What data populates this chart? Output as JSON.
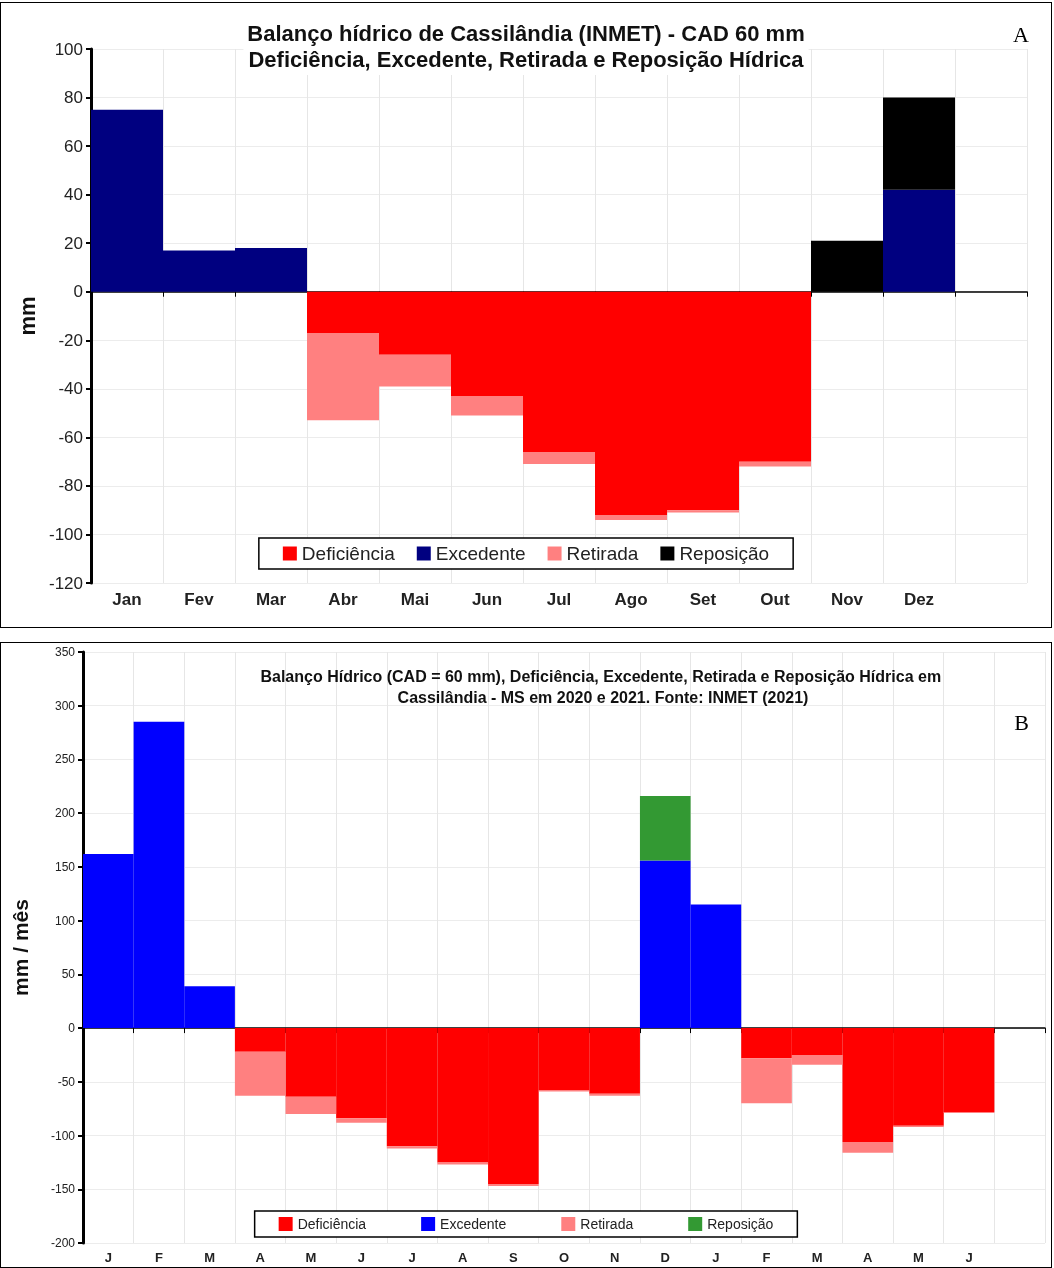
{
  "chart_data": [
    {
      "type": "bar",
      "title": "Balanço hídrico de Cassilândia (INMET) - CAD 60 mm",
      "subtitle": "Deficiência, Excedente, Retirada e Reposição Hídrica",
      "ylabel": "mm",
      "annotations": [
        "A"
      ],
      "stacked": true,
      "grid": true,
      "legend": "bottom",
      "ylim": [
        -120,
        100
      ],
      "yticks": [
        -120,
        -100,
        -80,
        -60,
        -40,
        -20,
        0,
        20,
        40,
        60,
        80,
        100
      ],
      "categories": [
        "Jan",
        "Fev",
        "Mar",
        "Abr",
        "Mai",
        "Jun",
        "Jul",
        "Ago",
        "Set",
        "Out",
        "Nov",
        "Dez",
        null
      ],
      "series": [
        {
          "name": "Deficiência",
          "color": "#ff0000",
          "values": [
            null,
            null,
            null,
            -17,
            -26,
            -43,
            -66,
            -92,
            -90,
            -70,
            null,
            null,
            null
          ]
        },
        {
          "name": "Excedente",
          "color": "#000080",
          "values": [
            75,
            17,
            18,
            null,
            null,
            null,
            null,
            null,
            null,
            null,
            null,
            42,
            null
          ]
        },
        {
          "name": "Retirada",
          "color": "#ff8080",
          "values": [
            null,
            null,
            null,
            -36,
            -13,
            -8,
            -5,
            -2,
            -1,
            -2,
            null,
            null,
            null
          ]
        },
        {
          "name": "Reposição",
          "color": "#000000",
          "values": [
            null,
            null,
            null,
            null,
            null,
            null,
            null,
            null,
            null,
            null,
            21,
            38,
            null
          ]
        }
      ]
    },
    {
      "type": "bar",
      "title": "Balanço Hídrico (CAD = 60 mm), Deficiência, Excedente, Retirada e Reposição Hídrica em Cassilândia - MS em 2020 e 2021. Fonte: INMET (2021)",
      "ylabel": "mm / mês",
      "annotations": [
        "B"
      ],
      "stacked": true,
      "grid": true,
      "legend": "bottom",
      "ylim": [
        -200,
        350
      ],
      "yticks": [
        -200,
        -150,
        -100,
        -50,
        0,
        50,
        100,
        150,
        200,
        250,
        300,
        350
      ],
      "categories": [
        "J",
        "F",
        "M",
        "A",
        "M",
        "J",
        "J",
        "A",
        "S",
        "O",
        "N",
        "D",
        "J",
        "F",
        "M",
        "A",
        "M",
        "J",
        null
      ],
      "series": [
        {
          "name": "Deficiência",
          "color": "#ff0000",
          "values": [
            null,
            null,
            null,
            -22,
            -64,
            -84,
            -110,
            -125,
            -145,
            -58,
            -61,
            null,
            null,
            -28,
            -25,
            -106,
            -91,
            -78,
            null
          ]
        },
        {
          "name": "Excedente",
          "color": "#0000ff",
          "values": [
            162,
            285,
            39,
            null,
            null,
            null,
            null,
            null,
            null,
            null,
            null,
            156,
            115,
            null,
            null,
            null,
            null,
            null,
            null
          ]
        },
        {
          "name": "Retirada",
          "color": "#ff8080",
          "values": [
            null,
            null,
            null,
            -41,
            -16,
            -4,
            -2,
            -2,
            -2,
            -1,
            -2,
            null,
            null,
            -42,
            -9,
            -10,
            -1,
            -1,
            null
          ]
        },
        {
          "name": "Reposição",
          "color": "#339933",
          "values": [
            null,
            null,
            null,
            null,
            null,
            null,
            null,
            null,
            null,
            null,
            null,
            60,
            null,
            null,
            null,
            null,
            null,
            null,
            null
          ]
        }
      ]
    }
  ]
}
